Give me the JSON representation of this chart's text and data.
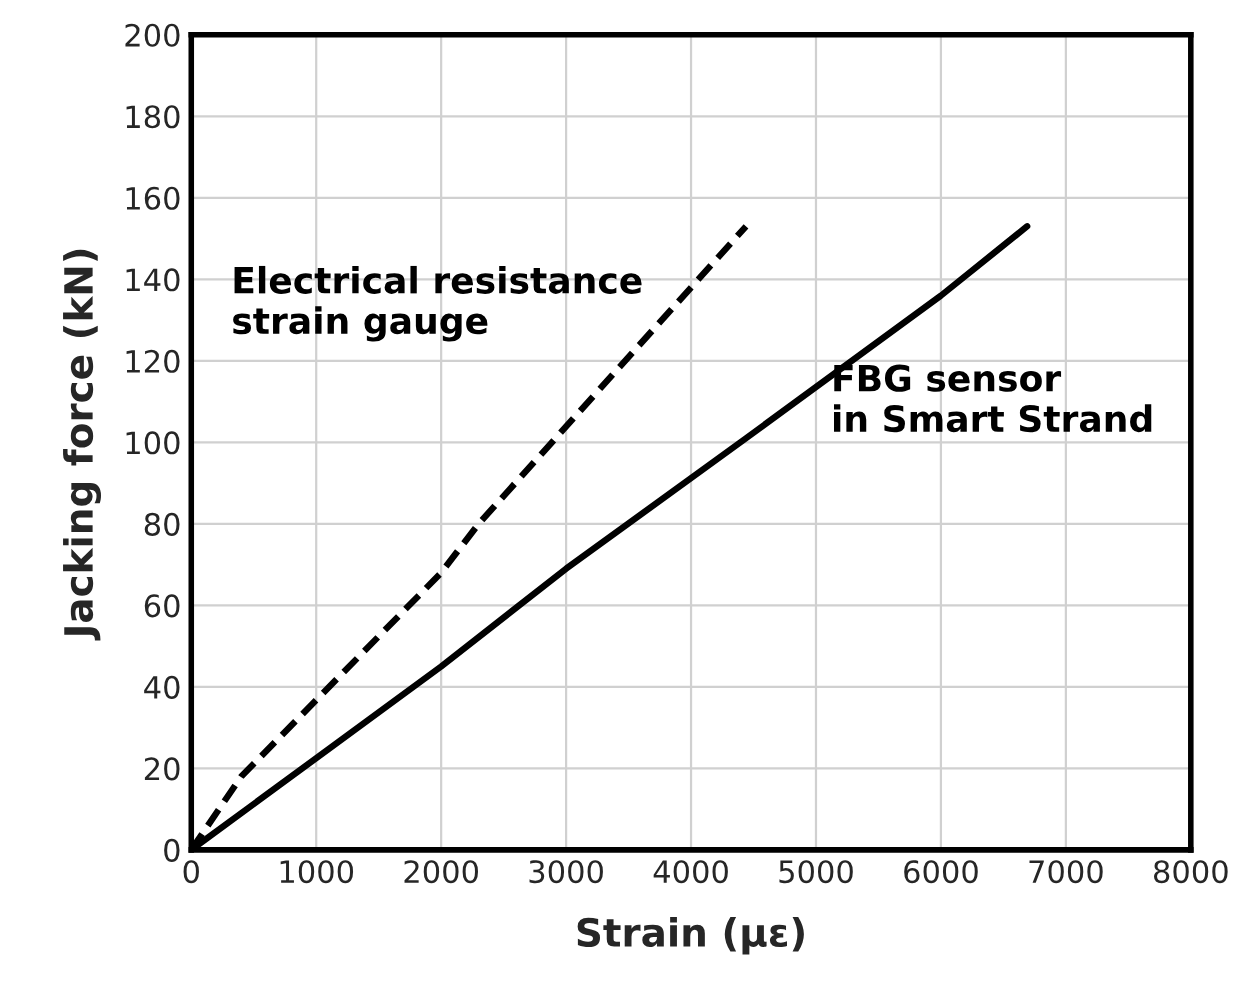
{
  "chart_data": {
    "type": "line",
    "xlabel": "Strain (με)",
    "ylabel": "Jacking force (kN)",
    "xlim": [
      0,
      8000
    ],
    "xticks": [
      0,
      1000,
      2000,
      3000,
      4000,
      5000,
      6000,
      7000,
      8000
    ],
    "ylim": [
      0,
      200
    ],
    "yticks": [
      0,
      20,
      40,
      60,
      80,
      100,
      120,
      140,
      160,
      180,
      200
    ],
    "grid": true,
    "series": [
      {
        "name": "Electrical resistance\nstrain gauge",
        "color": "#000000",
        "line_style": "dashed",
        "x": [
          0,
          400,
          2000,
          2300,
          4440
        ],
        "values": [
          0,
          18,
          68,
          80,
          153
        ]
      },
      {
        "name": "FBG sensor\nin Smart Strand",
        "color": "#000000",
        "line_style": "solid",
        "x": [
          0,
          2000,
          3000,
          4440,
          6000,
          6690
        ],
        "values": [
          0,
          45,
          69,
          101,
          136,
          153
        ]
      }
    ]
  }
}
